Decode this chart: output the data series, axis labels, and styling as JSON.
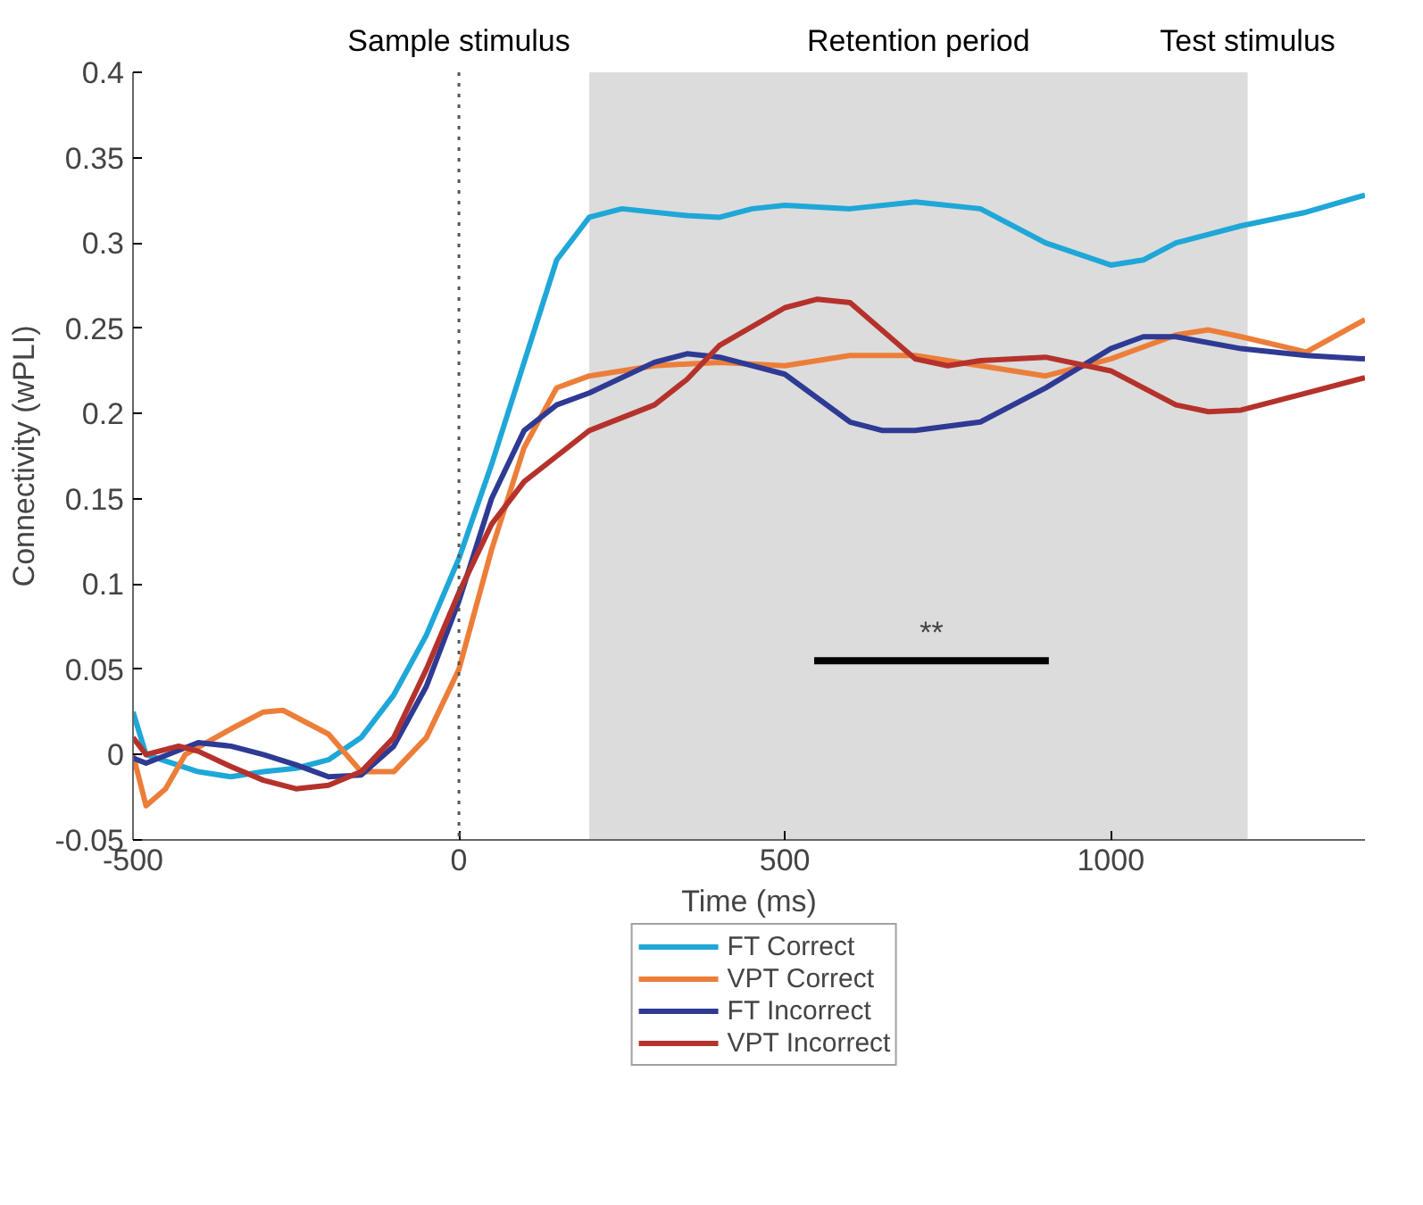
{
  "chart_data": {
    "type": "line",
    "xlabel": "Time (ms)",
    "ylabel": "Connectivity (wPLI)",
    "xlim": [
      -500,
      1390
    ],
    "ylim": [
      -0.05,
      0.4
    ],
    "xticks": [
      -500,
      0,
      500,
      1000
    ],
    "yticks": [
      -0.05,
      0,
      0.05,
      0.1,
      0.15,
      0.2,
      0.25,
      0.3,
      0.35,
      0.4
    ],
    "grid": false,
    "legend": "bottom",
    "line_style": "solid",
    "ref_lines": [
      {
        "axis": "x",
        "value": 0,
        "label": "Sample stimulus",
        "color": "#555555",
        "line_style": "dotted"
      }
    ],
    "bands": [
      {
        "axis": "x",
        "from": 200,
        "to": 1210,
        "label": "Retention period",
        "color": "#dcdcdc"
      }
    ],
    "annotations": [
      {
        "text": "Test stimulus",
        "x": 1210,
        "y": 0.4
      },
      {
        "text": "**",
        "x": 725,
        "y": 0.055
      }
    ],
    "series": [
      {
        "name": "FT Correct",
        "color": "#1fa7d8",
        "x": [
          -500,
          -480,
          -400,
          -350,
          -300,
          -250,
          -200,
          -150,
          -100,
          -50,
          0,
          50,
          100,
          150,
          200,
          250,
          350,
          400,
          450,
          500,
          600,
          700,
          800,
          900,
          1000,
          1050,
          1100,
          1200,
          1300,
          1390
        ],
        "values": [
          0.025,
          0.0,
          -0.01,
          -0.013,
          -0.01,
          -0.008,
          -0.003,
          0.01,
          0.035,
          0.07,
          0.115,
          0.17,
          0.23,
          0.29,
          0.315,
          0.32,
          0.316,
          0.315,
          0.32,
          0.322,
          0.32,
          0.324,
          0.32,
          0.3,
          0.287,
          0.29,
          0.3,
          0.31,
          0.318,
          0.328
        ]
      },
      {
        "name": "VPT Correct",
        "color": "#ec7e3a",
        "x": [
          -500,
          -480,
          -450,
          -420,
          -350,
          -300,
          -270,
          -200,
          -150,
          -100,
          -50,
          0,
          50,
          100,
          150,
          200,
          300,
          400,
          500,
          600,
          700,
          800,
          900,
          1000,
          1100,
          1150,
          1200,
          1300,
          1390
        ],
        "values": [
          0.0,
          -0.03,
          -0.02,
          0.0,
          0.015,
          0.025,
          0.026,
          0.012,
          -0.01,
          -0.01,
          0.01,
          0.05,
          0.12,
          0.18,
          0.215,
          0.222,
          0.228,
          0.23,
          0.228,
          0.234,
          0.234,
          0.228,
          0.222,
          0.232,
          0.246,
          0.249,
          0.245,
          0.236,
          0.255
        ]
      },
      {
        "name": "FT Incorrect",
        "color": "#2e3a93",
        "x": [
          -500,
          -480,
          -400,
          -350,
          -300,
          -250,
          -200,
          -150,
          -100,
          -50,
          0,
          50,
          100,
          150,
          200,
          300,
          350,
          400,
          500,
          600,
          650,
          700,
          800,
          900,
          1000,
          1050,
          1100,
          1200,
          1300,
          1390
        ],
        "values": [
          -0.002,
          -0.005,
          0.007,
          0.005,
          0.0,
          -0.006,
          -0.013,
          -0.012,
          0.005,
          0.04,
          0.09,
          0.15,
          0.19,
          0.205,
          0.212,
          0.23,
          0.235,
          0.233,
          0.223,
          0.195,
          0.19,
          0.19,
          0.195,
          0.215,
          0.238,
          0.245,
          0.245,
          0.238,
          0.234,
          0.232
        ]
      },
      {
        "name": "VPT Incorrect",
        "color": "#b5322c",
        "x": [
          -500,
          -480,
          -430,
          -400,
          -350,
          -300,
          -250,
          -200,
          -150,
          -100,
          -50,
          0,
          50,
          100,
          150,
          200,
          300,
          350,
          400,
          500,
          550,
          600,
          700,
          750,
          800,
          900,
          1000,
          1100,
          1150,
          1200,
          1300,
          1390
        ],
        "values": [
          0.01,
          0.0,
          0.005,
          0.002,
          -0.007,
          -0.015,
          -0.02,
          -0.018,
          -0.01,
          0.01,
          0.05,
          0.095,
          0.135,
          0.16,
          0.175,
          0.19,
          0.205,
          0.22,
          0.24,
          0.262,
          0.267,
          0.265,
          0.232,
          0.228,
          0.231,
          0.233,
          0.225,
          0.205,
          0.201,
          0.202,
          0.212,
          0.221
        ]
      },
      {
        "type": "line",
        "color": "#000000",
        "x": [
          545,
          905
        ],
        "values": [
          0.055,
          0.055
        ]
      }
    ]
  }
}
